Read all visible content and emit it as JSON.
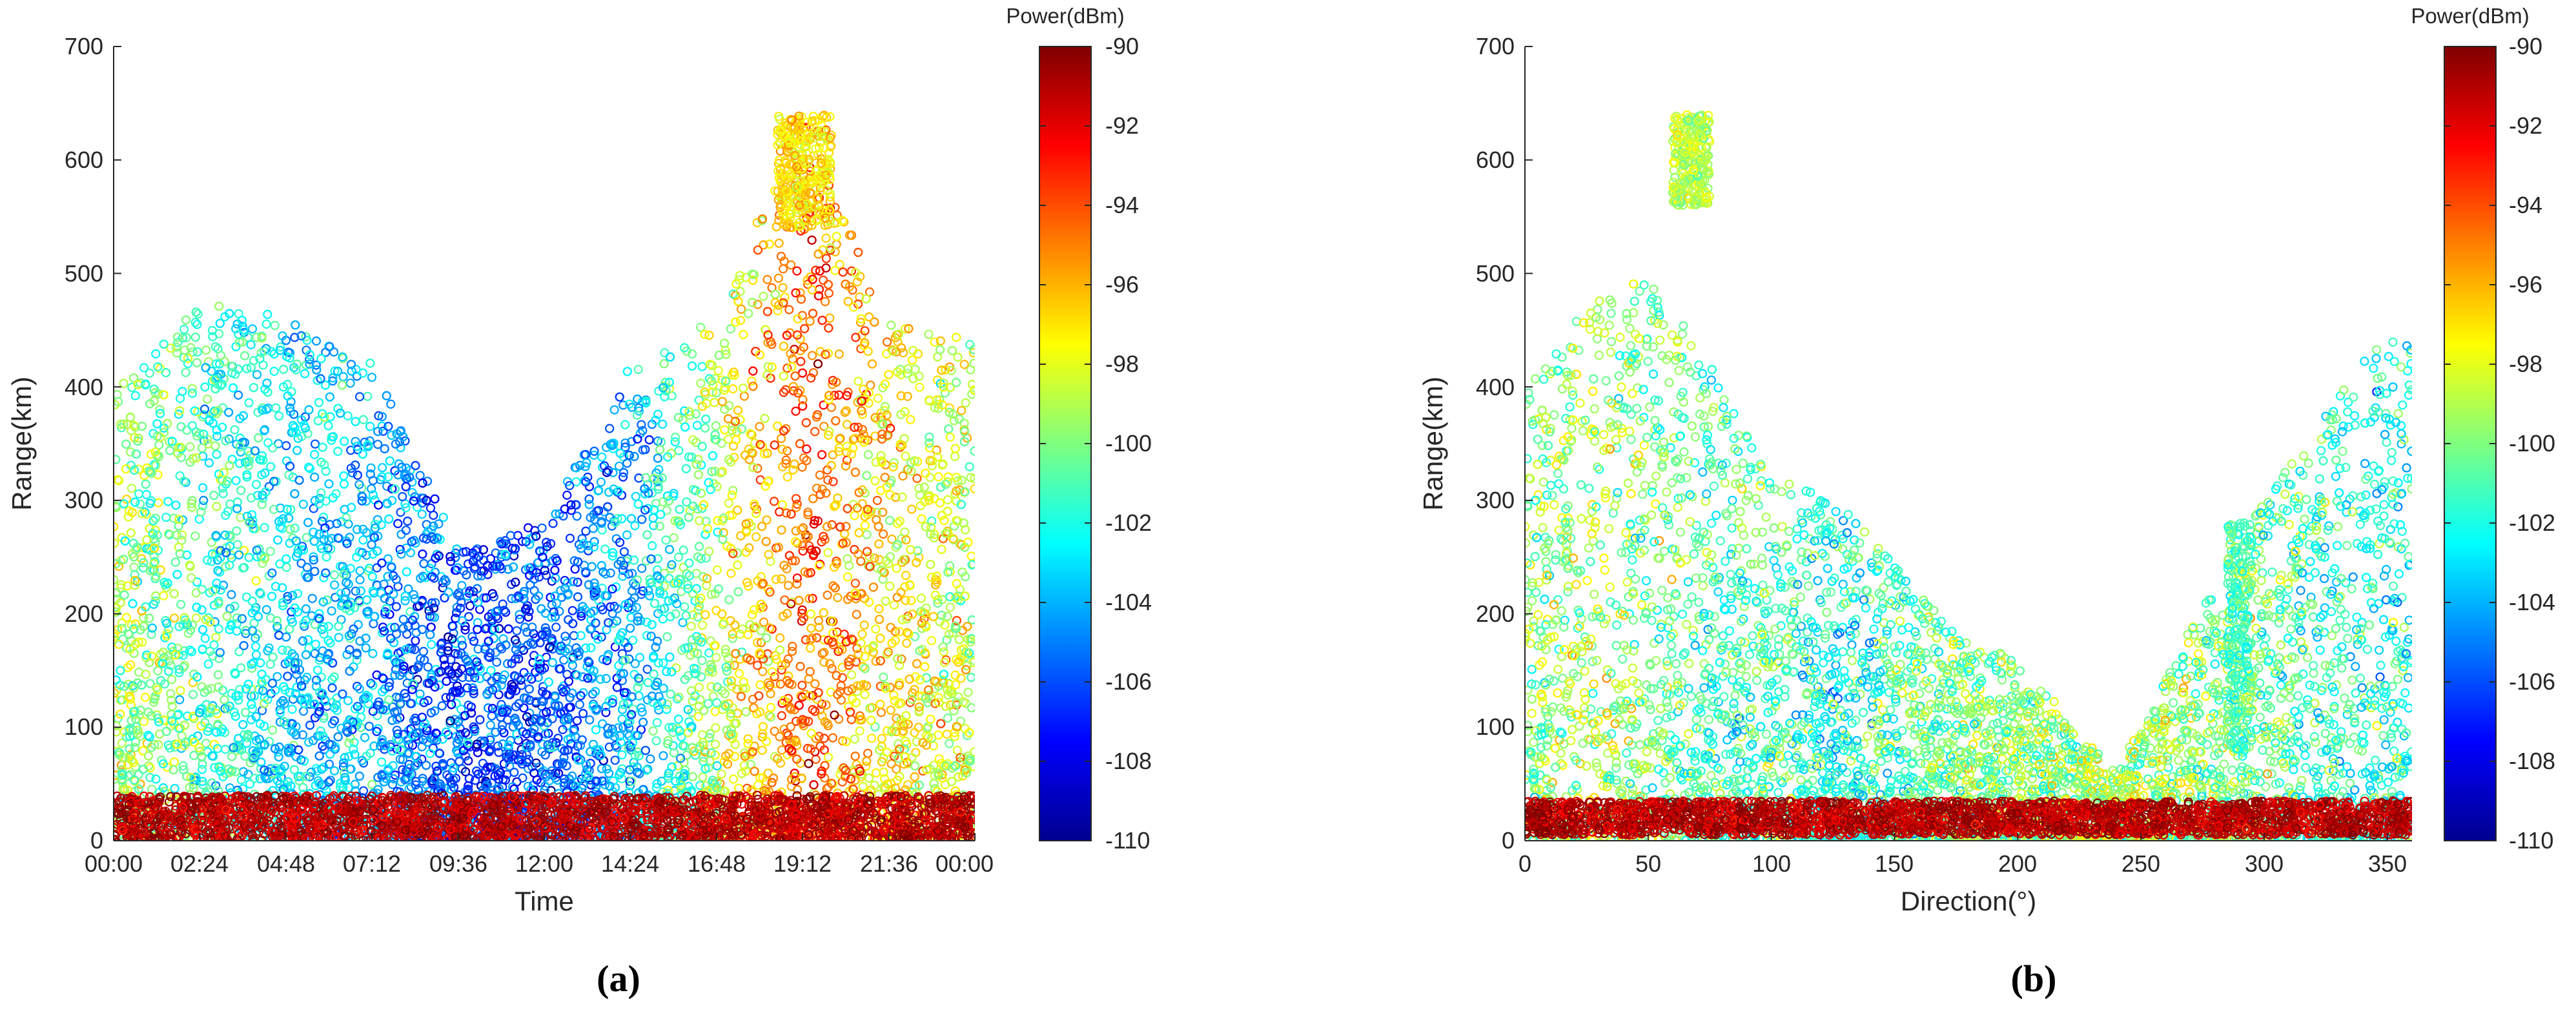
{
  "chart_data": [
    {
      "panel_label": "(a)",
      "type": "scatter",
      "marker": "open-circle",
      "xlabel": "Time",
      "ylabel": "Range(km)",
      "x_kind": "time-of-day",
      "xlim": [
        "00:00",
        "24:00"
      ],
      "ylim": [
        0,
        700
      ],
      "x_ticks": [
        "00:00",
        "02:24",
        "04:48",
        "07:12",
        "09:36",
        "12:00",
        "14:24",
        "16:48",
        "19:12",
        "21:36",
        "00:00"
      ],
      "y_ticks": [
        "0",
        "100",
        "200",
        "300",
        "400",
        "500",
        "600",
        "700"
      ],
      "colorbar": {
        "label": "Power(dBm)",
        "range": [
          -110,
          -90
        ],
        "colormap": "jet",
        "ticks": [
          "-90",
          "-92",
          "-94",
          "-96",
          "-98",
          "-100",
          "-102",
          "-104",
          "-106",
          "-108",
          "-110"
        ]
      },
      "density_summary": [
        {
          "time": "00:00",
          "range_band_km": [
            0,
            400
          ],
          "power_dBm": -99
        },
        {
          "time": "02:24",
          "range_band_km": [
            0,
            480
          ],
          "power_dBm": -101
        },
        {
          "time": "04:48",
          "range_band_km": [
            0,
            460
          ],
          "power_dBm": -103
        },
        {
          "time": "07:12",
          "range_band_km": [
            0,
            420
          ],
          "power_dBm": -104
        },
        {
          "time": "09:36",
          "range_band_km": [
            0,
            260
          ],
          "power_dBm": -106
        },
        {
          "time": "12:00",
          "range_band_km": [
            0,
            280
          ],
          "power_dBm": -106
        },
        {
          "time": "14:24",
          "range_band_km": [
            0,
            420
          ],
          "power_dBm": -104
        },
        {
          "time": "16:48",
          "range_band_km": [
            0,
            460
          ],
          "power_dBm": -99
        },
        {
          "time": "19:12",
          "range_band_km": [
            0,
            640
          ],
          "power_dBm": -94
        },
        {
          "time": "21:36",
          "range_band_km": [
            0,
            460
          ],
          "power_dBm": -97
        },
        {
          "time": "24:00",
          "range_band_km": [
            0,
            440
          ],
          "power_dBm": -99
        }
      ],
      "features": [
        {
          "description_x": "00:00-24:00",
          "range_km": [
            0,
            40
          ],
          "power_dBm": -91
        },
        {
          "description_x": "18:30-20:00",
          "range_km": [
            540,
            640
          ],
          "power_dBm": -97
        }
      ]
    },
    {
      "panel_label": "(b)",
      "type": "scatter",
      "marker": "open-circle",
      "xlabel": "Direction(°)",
      "ylabel": "Range(km)",
      "xlim": [
        0,
        360
      ],
      "ylim": [
        0,
        700
      ],
      "x_ticks": [
        "0",
        "50",
        "100",
        "150",
        "200",
        "250",
        "300",
        "350"
      ],
      "y_ticks": [
        "0",
        "100",
        "200",
        "300",
        "400",
        "500",
        "600",
        "700"
      ],
      "colorbar": {
        "label": "Power(dBm)",
        "range": [
          -110,
          -90
        ],
        "colormap": "jet",
        "ticks": [
          "-90",
          "-92",
          "-94",
          "-96",
          "-98",
          "-100",
          "-102",
          "-104",
          "-106",
          "-108",
          "-110"
        ]
      },
      "density_summary": [
        {
          "direction_deg": 0,
          "range_band_km": [
            0,
            400
          ],
          "power_dBm": -100
        },
        {
          "direction_deg": 25,
          "range_band_km": [
            0,
            480
          ],
          "power_dBm": -99
        },
        {
          "direction_deg": 50,
          "range_band_km": [
            0,
            500
          ],
          "power_dBm": -100
        },
        {
          "direction_deg": 75,
          "range_band_km": [
            0,
            420
          ],
          "power_dBm": -101
        },
        {
          "direction_deg": 100,
          "range_band_km": [
            0,
            320
          ],
          "power_dBm": -101
        },
        {
          "direction_deg": 125,
          "range_band_km": [
            0,
            300
          ],
          "power_dBm": -102
        },
        {
          "direction_deg": 150,
          "range_band_km": [
            0,
            250
          ],
          "power_dBm": -101
        },
        {
          "direction_deg": 175,
          "range_band_km": [
            0,
            180
          ],
          "power_dBm": -100
        },
        {
          "direction_deg": 200,
          "range_band_km": [
            0,
            160
          ],
          "power_dBm": -100
        },
        {
          "direction_deg": 240,
          "range_band_km": [
            0,
            60
          ],
          "power_dBm": -99
        },
        {
          "direction_deg": 290,
          "range_band_km": [
            0,
            270
          ],
          "power_dBm": -100
        },
        {
          "direction_deg": 345,
          "range_band_km": [
            0,
            440
          ],
          "power_dBm": -102
        }
      ],
      "features": [
        {
          "direction_deg": [
            0,
            360
          ],
          "range_km": [
            5,
            35
          ],
          "power_dBm": -91
        },
        {
          "direction_deg": [
            60,
            75
          ],
          "range_km": [
            560,
            640
          ],
          "power_dBm": -99
        },
        {
          "direction_deg": [
            285,
            295
          ],
          "range_km": [
            80,
            280
          ],
          "power_dBm": -101
        }
      ]
    }
  ]
}
